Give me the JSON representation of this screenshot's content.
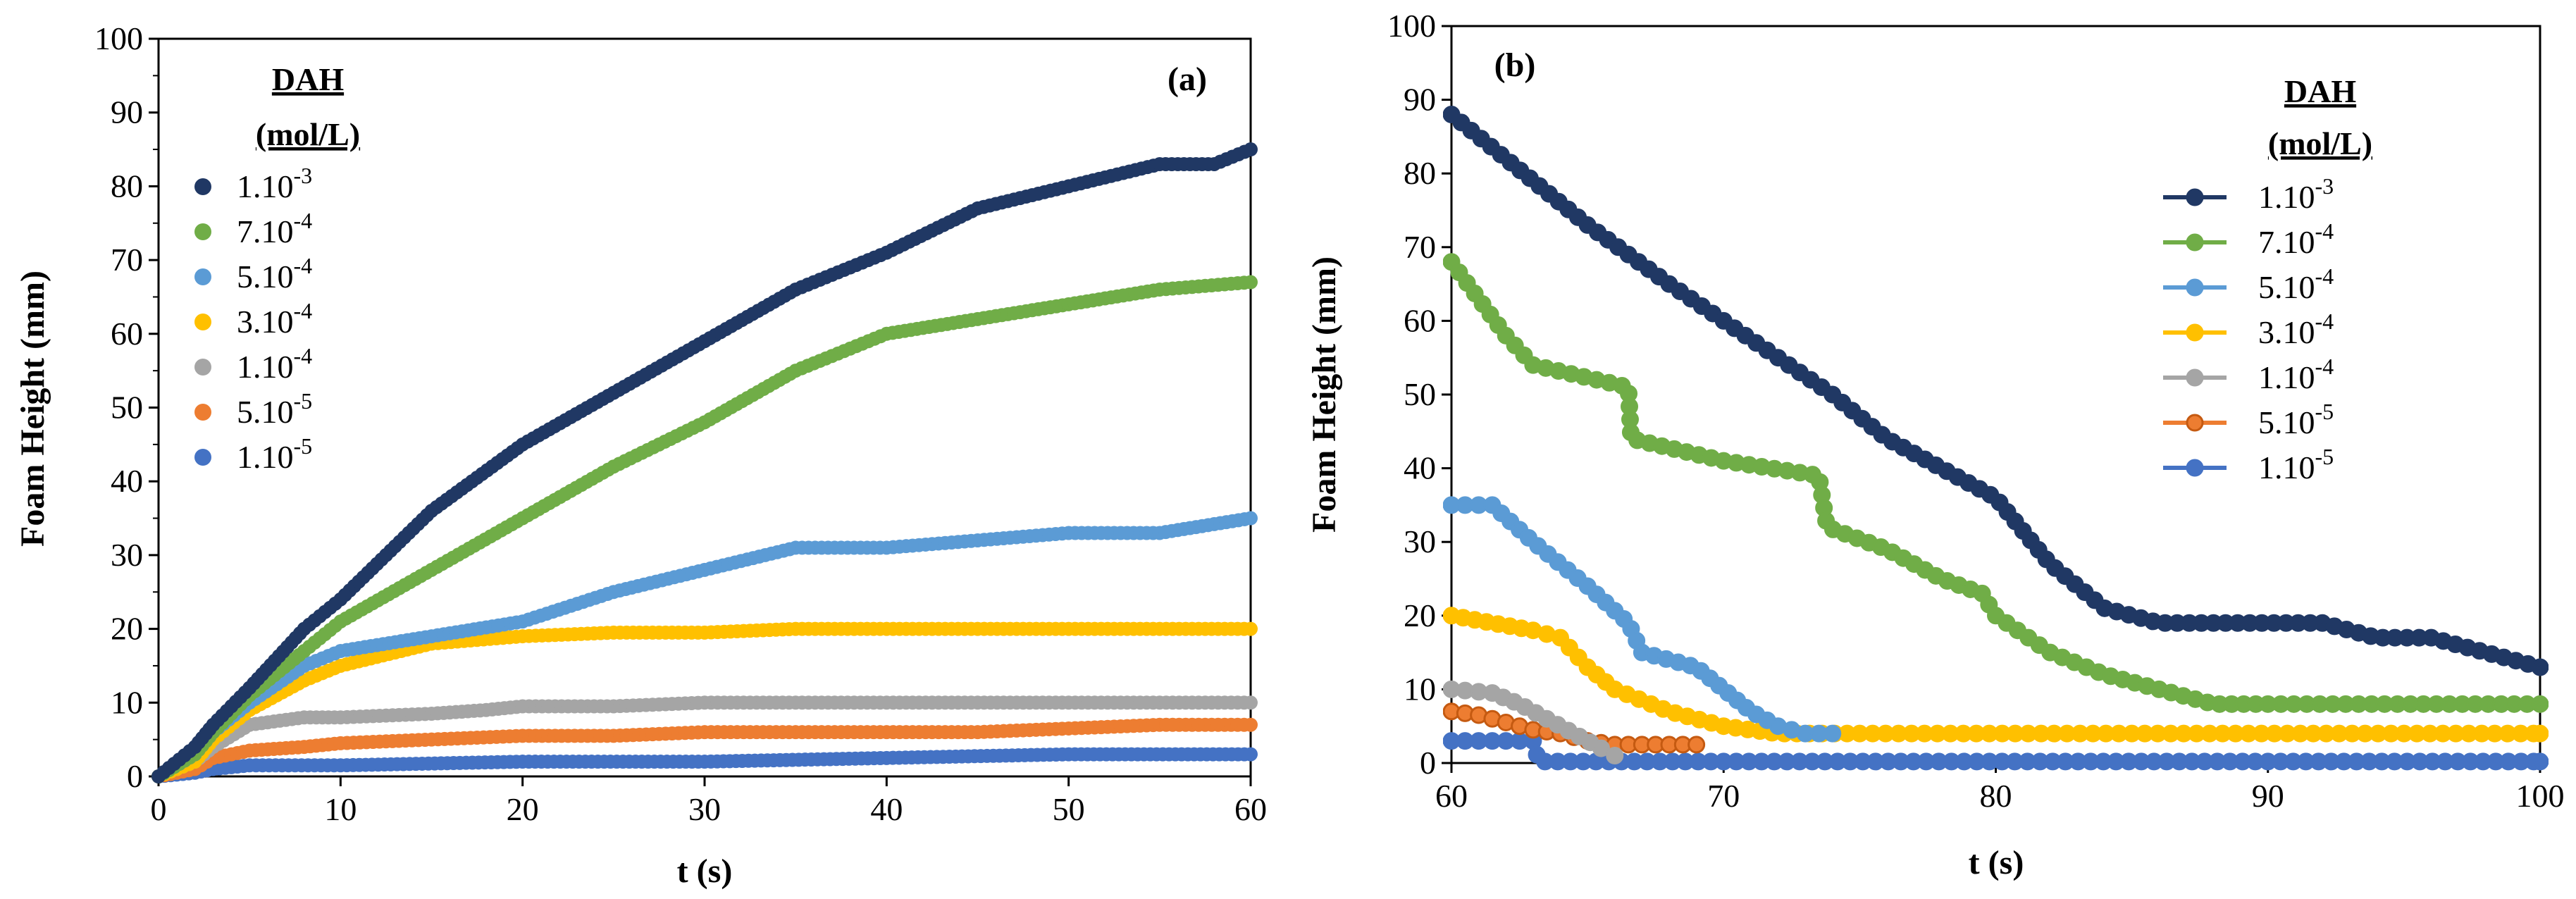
{
  "chart_data": [
    {
      "type": "scatter",
      "panel_label": "(a)",
      "xlabel": "t (s)",
      "ylabel": "Foam Height (mm)",
      "xlim": [
        0,
        60
      ],
      "ylim": [
        0,
        100
      ],
      "xticks": [
        0,
        10,
        20,
        30,
        40,
        50,
        60
      ],
      "yticks": [
        0,
        10,
        20,
        30,
        40,
        50,
        60,
        70,
        80,
        90,
        100
      ],
      "legend": {
        "title_line1": "DAH",
        "title_line2": "(mol/L)",
        "position": "top-left"
      },
      "series": [
        {
          "name": "1.10-3",
          "mantissa": "1.10",
          "exponent": "-3",
          "color": "#203864",
          "x": [
            0,
            2,
            3,
            5,
            8,
            10,
            15,
            20,
            25,
            30,
            35,
            40,
            45,
            50,
            55,
            58,
            60
          ],
          "y": [
            0,
            4,
            7,
            12,
            20,
            24,
            36,
            45,
            52,
            59,
            66,
            71,
            77,
            80,
            83,
            83,
            85
          ]
        },
        {
          "name": "7.10-4",
          "mantissa": "7.10",
          "exponent": "-4",
          "color": "#70AD47",
          "x": [
            0,
            2,
            3,
            5,
            8,
            10,
            15,
            20,
            25,
            30,
            35,
            40,
            45,
            50,
            55,
            60
          ],
          "y": [
            0,
            3,
            6,
            11,
            17,
            21,
            28,
            35,
            42,
            48,
            55,
            60,
            62,
            64,
            66,
            67
          ]
        },
        {
          "name": "5.10-4",
          "mantissa": "5.10",
          "exponent": "-4",
          "color": "#5B9BD5",
          "x": [
            0,
            2,
            3,
            5,
            8,
            10,
            15,
            20,
            25,
            30,
            35,
            40,
            45,
            50,
            55,
            60
          ],
          "y": [
            0,
            3,
            6,
            10,
            15,
            17,
            19,
            21,
            25,
            28,
            31,
            31,
            32,
            33,
            33,
            35
          ]
        },
        {
          "name": "3.10-4",
          "mantissa": "3.10",
          "exponent": "-4",
          "color": "#FFC000",
          "x": [
            0,
            2,
            3,
            5,
            8,
            10,
            15,
            20,
            25,
            30,
            35,
            40,
            45,
            50,
            55,
            60
          ],
          "y": [
            0,
            2,
            5,
            9,
            13,
            15,
            18,
            19,
            19.5,
            19.5,
            20,
            20,
            20,
            20,
            20,
            20
          ]
        },
        {
          "name": "1.10-4",
          "mantissa": "1.10",
          "exponent": "-4",
          "color": "#A5A5A5",
          "x": [
            0,
            2,
            3,
            5,
            8,
            10,
            15,
            18,
            20,
            25,
            30,
            35,
            40,
            45,
            50,
            55,
            60
          ],
          "y": [
            0,
            2,
            4,
            7,
            8,
            8,
            8.5,
            9,
            9.5,
            9.5,
            10,
            10,
            10,
            10,
            10,
            10,
            10
          ]
        },
        {
          "name": "5.10-5",
          "mantissa": "5.10",
          "exponent": "-5",
          "color": "#ED7D31",
          "x": [
            0,
            2,
            3,
            5,
            8,
            10,
            15,
            20,
            25,
            30,
            35,
            40,
            45,
            50,
            55,
            60
          ],
          "y": [
            0,
            1,
            2.5,
            3.5,
            4,
            4.5,
            5,
            5.5,
            5.5,
            6,
            6,
            6,
            6,
            6.5,
            7,
            7
          ]
        },
        {
          "name": "1.10-5",
          "mantissa": "1.10",
          "exponent": "-5",
          "color": "#4472C4",
          "x": [
            0,
            2,
            3,
            5,
            10,
            20,
            30,
            40,
            50,
            60
          ],
          "y": [
            0,
            0.5,
            1,
            1.5,
            1.5,
            2,
            2,
            2.5,
            3,
            3
          ]
        }
      ]
    },
    {
      "type": "line",
      "panel_label": "(b)",
      "xlabel": "t (s)",
      "ylabel": "Foam Height (mm)",
      "xlim": [
        60,
        100
      ],
      "ylim": [
        0,
        100
      ],
      "xticks": [
        60,
        70,
        80,
        90,
        100
      ],
      "yticks": [
        0,
        10,
        20,
        30,
        40,
        50,
        60,
        70,
        80,
        90,
        100
      ],
      "legend": {
        "title_line1": "DAH",
        "title_line2": "(mol/L)",
        "position": "top-right"
      },
      "series": [
        {
          "name": "1.10-3",
          "mantissa": "1.10",
          "exponent": "-3",
          "color": "#203864",
          "marker_edge": "#203864",
          "x": [
            60,
            62,
            65,
            68,
            70,
            72,
            74,
            76,
            78,
            80,
            82,
            84,
            86,
            88,
            90,
            92,
            94,
            96,
            98,
            100
          ],
          "y": [
            88,
            82,
            73,
            65,
            60,
            55,
            50,
            44,
            40,
            36,
            27,
            21,
            19,
            19,
            19,
            19,
            17,
            17,
            15,
            13
          ]
        },
        {
          "name": "7.10-4",
          "mantissa": "7.10",
          "exponent": "-4",
          "color": "#70AD47",
          "marker_edge": "#70AD47",
          "x": [
            60,
            62,
            63,
            66.5,
            66.6,
            70,
            73.5,
            73.8,
            76,
            78,
            79.5,
            80,
            82,
            84,
            86,
            88,
            90,
            95,
            100
          ],
          "y": [
            68,
            58,
            54,
            51,
            44,
            41,
            39,
            32,
            29,
            25,
            23,
            20,
            15,
            12,
            10,
            8,
            8,
            8,
            8
          ]
        },
        {
          "name": "5.10-4",
          "mantissa": "5.10",
          "exponent": "-4",
          "color": "#5B9BD5",
          "marker_edge": "#5B9BD5",
          "x": [
            60,
            61.5,
            63,
            65,
            66.5,
            67,
            69,
            70,
            71,
            72,
            73,
            74
          ],
          "y": [
            35,
            35,
            30,
            24,
            19,
            15,
            13,
            10,
            7,
            5,
            4,
            4
          ]
        },
        {
          "name": "3.10-4",
          "mantissa": "3.10",
          "exponent": "-4",
          "color": "#FFC000",
          "marker_edge": "#FFC000",
          "x": [
            60,
            61.5,
            63,
            64,
            65,
            66,
            68,
            70,
            72,
            75,
            80,
            85,
            90,
            95,
            100
          ],
          "y": [
            20,
            19,
            18,
            17,
            13,
            10,
            7,
            5,
            4,
            4,
            4,
            4,
            4,
            4,
            4
          ]
        },
        {
          "name": "1.10-4",
          "mantissa": "1.10",
          "exponent": "-4",
          "color": "#A5A5A5",
          "marker_edge": "#A5A5A5",
          "x": [
            60,
            61.5,
            62.5,
            63.5,
            64.5,
            65.5,
            66
          ],
          "y": [
            10,
            9.5,
            8,
            6,
            4,
            2,
            1
          ]
        },
        {
          "name": "5.10-5",
          "mantissa": "5.10",
          "exponent": "-5",
          "color": "#ED7D31",
          "marker_edge": "#C55A11",
          "x": [
            60,
            61,
            62,
            63,
            64,
            65,
            66,
            67,
            68,
            69
          ],
          "y": [
            7,
            6.5,
            5.5,
            4.5,
            4,
            3,
            2.5,
            2.5,
            2.5,
            2.5
          ]
        },
        {
          "name": "1.10-5",
          "mantissa": "1.10",
          "exponent": "-5",
          "color": "#4472C4",
          "marker_edge": "#4472C4",
          "x": [
            60,
            61,
            62,
            63,
            63.2,
            70,
            80,
            90,
            100
          ],
          "y": [
            3,
            3,
            3,
            3,
            0.2,
            0.2,
            0.2,
            0.2,
            0.2
          ]
        }
      ]
    }
  ]
}
